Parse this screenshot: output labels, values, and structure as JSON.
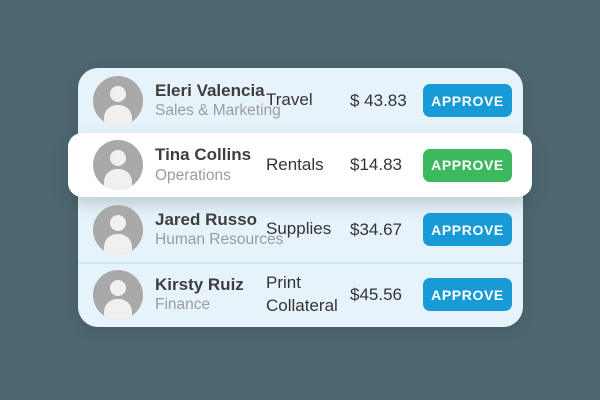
{
  "colors": {
    "background": "#4d6670",
    "card": "#e6f3fa",
    "divider": "#cfe7f3",
    "row_highlight": "#ffffff",
    "approve_blue": "#189ad6",
    "approve_green": "#3cb95f",
    "name_text": "#3e3e3e",
    "muted_text": "#9c9c9c",
    "dark_text": "#343434",
    "avatar_gray": "#a9a9a9",
    "avatar_person": "#f2f0ee"
  },
  "rows": [
    {
      "name": "Eleri Valencia",
      "department": "Sales & Marketing",
      "category": "Travel",
      "amount": "$ 43.83",
      "button_label": "APPROVE",
      "button_color": "blue",
      "highlighted": false
    },
    {
      "name": "Tina Collins",
      "department": "Operations",
      "category": "Rentals",
      "amount": "$14.83",
      "button_label": "APPROVE",
      "button_color": "green",
      "highlighted": true
    },
    {
      "name": "Jared Russo",
      "department": "Human Resources",
      "category": "Supplies",
      "amount": "$34.67",
      "button_label": "APPROVE",
      "button_color": "blue",
      "highlighted": false
    },
    {
      "name": "Kirsty Ruiz",
      "department": "Finance",
      "category": "Print Collateral",
      "amount": "$45.56",
      "button_label": "APPROVE",
      "button_color": "blue",
      "highlighted": false
    }
  ]
}
